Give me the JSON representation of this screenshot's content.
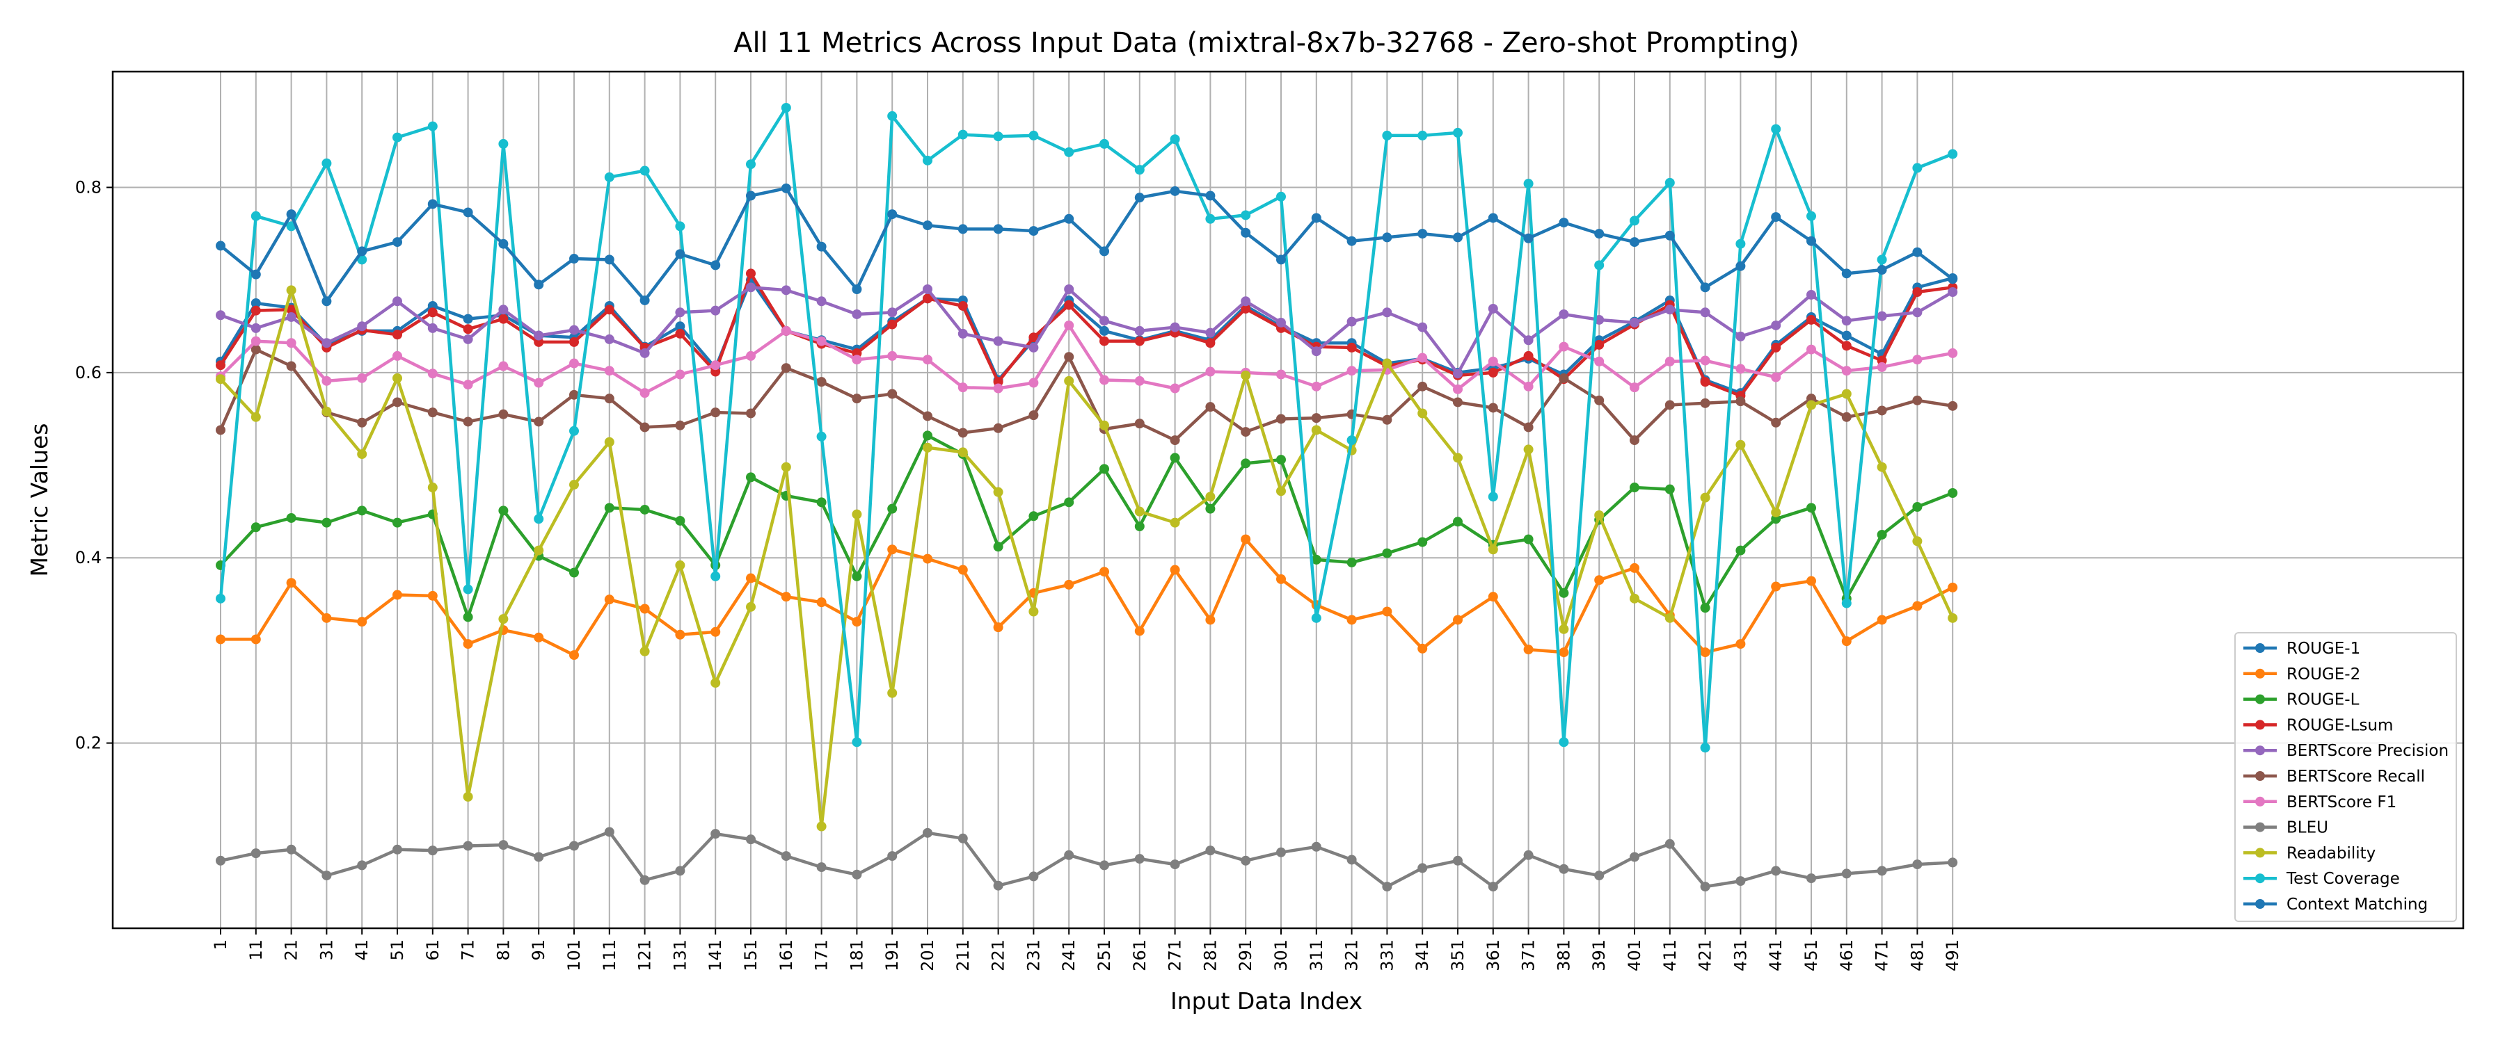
{
  "chart_data": {
    "type": "line",
    "title": "All 11 Metrics Across Input Data (mixtral-8x7b-32768 - Zero-shot Prompting)",
    "xlabel": "Input Data Index",
    "ylabel": "Metric Values",
    "ylim": [
      0.0,
      0.925
    ],
    "yticks": [
      0.2,
      0.4,
      0.6,
      0.8
    ],
    "grid": true,
    "legend_position": "lower-right",
    "categories": [
      "1",
      "11",
      "21",
      "31",
      "41",
      "51",
      "61",
      "71",
      "81",
      "91",
      "101",
      "111",
      "121",
      "131",
      "141",
      "151",
      "161",
      "171",
      "181",
      "191",
      "201",
      "211",
      "221",
      "231",
      "241",
      "251",
      "261",
      "271",
      "281",
      "291",
      "301",
      "311",
      "321",
      "331",
      "341",
      "351",
      "361",
      "371",
      "381",
      "391",
      "401",
      "411",
      "421",
      "431",
      "441",
      "451",
      "461",
      "471",
      "481",
      "491"
    ],
    "series": [
      {
        "name": "ROUGE-1",
        "color": "#1f77b4",
        "values": [
          0.612,
          0.675,
          0.67,
          0.63,
          0.645,
          0.645,
          0.672,
          0.658,
          0.662,
          0.64,
          0.638,
          0.672,
          0.628,
          0.65,
          0.605,
          0.7,
          0.645,
          0.635,
          0.625,
          0.655,
          0.68,
          0.678,
          0.592,
          0.635,
          0.678,
          0.645,
          0.635,
          0.645,
          0.635,
          0.672,
          0.65,
          0.632,
          0.632,
          0.61,
          0.615,
          0.6,
          0.605,
          0.615,
          0.598,
          0.635,
          0.655,
          0.678,
          0.592,
          0.578,
          0.63,
          0.66,
          0.64,
          0.62,
          0.692,
          0.702
        ]
      },
      {
        "name": "ROUGE-2",
        "color": "#ff7f0e",
        "values": [
          0.312,
          0.312,
          0.373,
          0.335,
          0.331,
          0.36,
          0.359,
          0.307,
          0.322,
          0.314,
          0.295,
          0.355,
          0.345,
          0.317,
          0.32,
          0.378,
          0.358,
          0.352,
          0.331,
          0.409,
          0.399,
          0.387,
          0.325,
          0.362,
          0.371,
          0.385,
          0.321,
          0.387,
          0.333,
          0.42,
          0.377,
          0.349,
          0.333,
          0.342,
          0.302,
          0.333,
          0.358,
          0.301,
          0.298,
          0.376,
          0.389,
          0.338,
          0.298,
          0.307,
          0.369,
          0.375,
          0.31,
          0.333,
          0.348,
          0.368
        ]
      },
      {
        "name": "ROUGE-L",
        "color": "#2ca02c",
        "values": [
          0.392,
          0.433,
          0.443,
          0.438,
          0.451,
          0.438,
          0.447,
          0.336,
          0.451,
          0.402,
          0.384,
          0.454,
          0.452,
          0.44,
          0.392,
          0.487,
          0.467,
          0.46,
          0.38,
          0.453,
          0.532,
          0.512,
          0.412,
          0.445,
          0.46,
          0.496,
          0.434,
          0.508,
          0.453,
          0.502,
          0.506,
          0.398,
          0.395,
          0.405,
          0.417,
          0.439,
          0.414,
          0.42,
          0.362,
          0.441,
          0.476,
          0.474,
          0.346,
          0.408,
          0.442,
          0.454,
          0.356,
          0.425,
          0.455,
          0.47
        ]
      },
      {
        "name": "ROUGE-Lsum",
        "color": "#d62728",
        "values": [
          0.608,
          0.667,
          0.668,
          0.627,
          0.646,
          0.641,
          0.665,
          0.647,
          0.658,
          0.633,
          0.633,
          0.668,
          0.627,
          0.642,
          0.601,
          0.707,
          0.645,
          0.631,
          0.621,
          0.652,
          0.68,
          0.672,
          0.59,
          0.638,
          0.673,
          0.634,
          0.634,
          0.643,
          0.632,
          0.669,
          0.648,
          0.628,
          0.627,
          0.607,
          0.614,
          0.597,
          0.6,
          0.618,
          0.593,
          0.63,
          0.652,
          0.673,
          0.59,
          0.575,
          0.627,
          0.657,
          0.629,
          0.613,
          0.687,
          0.692
        ]
      },
      {
        "name": "BERTScore Precision",
        "color": "#9467bd",
        "values": [
          0.662,
          0.648,
          0.66,
          0.632,
          0.65,
          0.677,
          0.648,
          0.636,
          0.668,
          0.64,
          0.646,
          0.636,
          0.621,
          0.665,
          0.667,
          0.692,
          0.689,
          0.677,
          0.663,
          0.665,
          0.69,
          0.642,
          0.634,
          0.627,
          0.69,
          0.656,
          0.645,
          0.649,
          0.643,
          0.677,
          0.654,
          0.623,
          0.655,
          0.665,
          0.649,
          0.599,
          0.669,
          0.635,
          0.663,
          0.657,
          0.654,
          0.668,
          0.665,
          0.639,
          0.651,
          0.684,
          0.656,
          0.661,
          0.665,
          0.687
        ]
      },
      {
        "name": "BERTScore Recall",
        "color": "#8c564b",
        "values": [
          0.538,
          0.625,
          0.607,
          0.557,
          0.546,
          0.568,
          0.557,
          0.547,
          0.555,
          0.547,
          0.576,
          0.572,
          0.541,
          0.543,
          0.557,
          0.556,
          0.605,
          0.59,
          0.572,
          0.577,
          0.553,
          0.535,
          0.54,
          0.554,
          0.617,
          0.539,
          0.545,
          0.527,
          0.563,
          0.536,
          0.55,
          0.551,
          0.555,
          0.549,
          0.585,
          0.568,
          0.562,
          0.541,
          0.594,
          0.57,
          0.527,
          0.565,
          0.567,
          0.569,
          0.546,
          0.572,
          0.552,
          0.559,
          0.57,
          0.564
        ]
      },
      {
        "name": "BERTScore F1",
        "color": "#e377c2",
        "values": [
          0.596,
          0.634,
          0.632,
          0.591,
          0.594,
          0.618,
          0.599,
          0.587,
          0.607,
          0.589,
          0.61,
          0.602,
          0.578,
          0.598,
          0.608,
          0.618,
          0.645,
          0.634,
          0.614,
          0.618,
          0.614,
          0.584,
          0.583,
          0.589,
          0.651,
          0.592,
          0.591,
          0.583,
          0.601,
          0.6,
          0.598,
          0.585,
          0.602,
          0.603,
          0.616,
          0.582,
          0.612,
          0.585,
          0.628,
          0.612,
          0.584,
          0.612,
          0.613,
          0.604,
          0.595,
          0.625,
          0.602,
          0.606,
          0.614,
          0.621
        ]
      },
      {
        "name": "BLEU",
        "color": "#7f7f7f",
        "values": [
          0.073,
          0.081,
          0.085,
          0.057,
          0.068,
          0.085,
          0.084,
          0.089,
          0.09,
          0.077,
          0.089,
          0.104,
          0.052,
          0.062,
          0.102,
          0.096,
          0.078,
          0.066,
          0.058,
          0.078,
          0.103,
          0.097,
          0.046,
          0.056,
          0.079,
          0.068,
          0.075,
          0.069,
          0.084,
          0.073,
          0.082,
          0.088,
          0.074,
          0.045,
          0.065,
          0.073,
          0.045,
          0.079,
          0.064,
          0.057,
          0.077,
          0.091,
          0.045,
          0.051,
          0.062,
          0.054,
          0.059,
          0.062,
          0.069,
          0.071
        ]
      },
      {
        "name": "Readability",
        "color": "#bcbd22",
        "values": [
          0.593,
          0.552,
          0.689,
          0.558,
          0.512,
          0.594,
          0.476,
          0.142,
          0.334,
          0.408,
          0.479,
          0.525,
          0.299,
          0.392,
          0.265,
          0.347,
          0.498,
          0.11,
          0.447,
          0.254,
          0.519,
          0.514,
          0.471,
          0.342,
          0.591,
          0.543,
          0.45,
          0.438,
          0.466,
          0.597,
          0.472,
          0.538,
          0.516,
          0.61,
          0.556,
          0.508,
          0.409,
          0.517,
          0.323,
          0.446,
          0.356,
          0.335,
          0.465,
          0.522,
          0.449,
          0.565,
          0.577,
          0.498,
          0.418,
          0.335
        ]
      },
      {
        "name": "Test Coverage",
        "color": "#17becf",
        "values": [
          0.356,
          0.769,
          0.758,
          0.826,
          0.722,
          0.854,
          0.866,
          0.366,
          0.847,
          0.442,
          0.537,
          0.811,
          0.818,
          0.758,
          0.38,
          0.825,
          0.886,
          0.531,
          0.201,
          0.877,
          0.829,
          0.857,
          0.855,
          0.856,
          0.838,
          0.847,
          0.819,
          0.852,
          0.766,
          0.77,
          0.79,
          0.335,
          0.527,
          0.856,
          0.856,
          0.859,
          0.466,
          0.804,
          0.201,
          0.716,
          0.764,
          0.805,
          0.195,
          0.739,
          0.863,
          0.769,
          0.351,
          0.722,
          0.821,
          0.836
        ]
      },
      {
        "name": "Context Matching",
        "color": "#1f77b4",
        "values": [
          0.737,
          0.706,
          0.771,
          0.677,
          0.731,
          0.741,
          0.782,
          0.773,
          0.739,
          0.695,
          0.723,
          0.722,
          0.678,
          0.728,
          0.716,
          0.791,
          0.799,
          0.736,
          0.69,
          0.771,
          0.759,
          0.755,
          0.755,
          0.753,
          0.766,
          0.731,
          0.789,
          0.796,
          0.791,
          0.751,
          0.722,
          0.767,
          0.742,
          0.746,
          0.75,
          0.746,
          0.767,
          0.745,
          0.762,
          0.75,
          0.741,
          0.748,
          0.692,
          0.715,
          0.768,
          0.742,
          0.707,
          0.711,
          0.73,
          0.701
        ]
      }
    ]
  }
}
